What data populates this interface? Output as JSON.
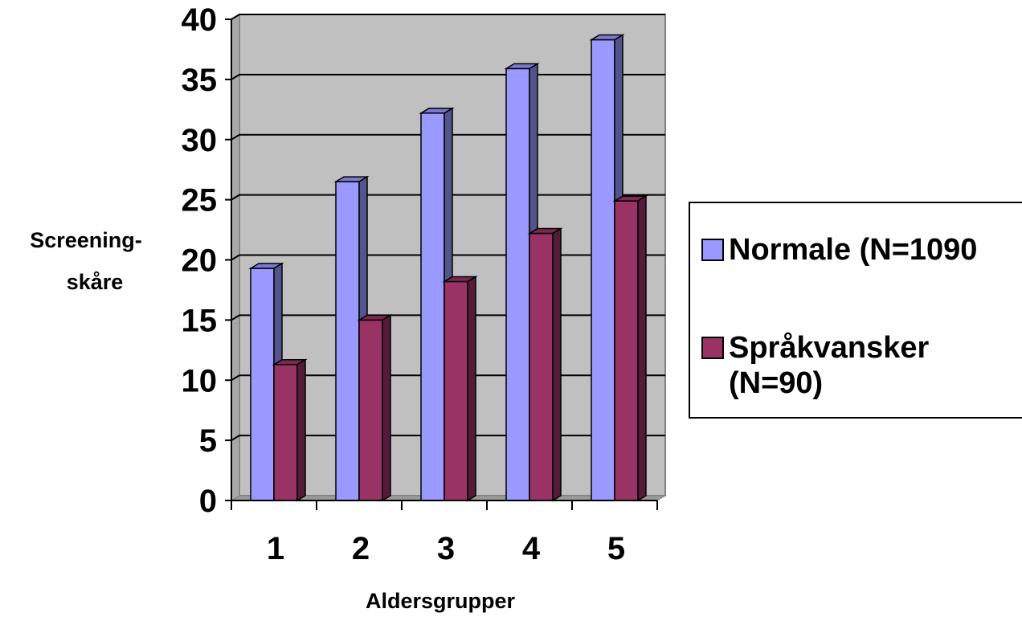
{
  "chart_data": {
    "type": "bar",
    "categories": [
      "1",
      "2",
      "3",
      "4",
      "5"
    ],
    "series": [
      {
        "name": "Normale (N=1090",
        "values": [
          19.3,
          26.5,
          32.2,
          35.9,
          38.3
        ],
        "color": "#9999ff"
      },
      {
        "name": "Språkvansker\n(N=90)",
        "values": [
          11.3,
          15.0,
          18.2,
          22.2,
          24.9
        ],
        "color": "#993366"
      }
    ],
    "xlabel": "Aldersgrupper",
    "ylabel": [
      "Screening-",
      "skåre"
    ],
    "yticks": [
      "0",
      "5",
      "10",
      "15",
      "20",
      "25",
      "30",
      "35",
      "40"
    ],
    "ylim": [
      0,
      40
    ],
    "grid": true,
    "legend_position": "right",
    "plot_background": "#c0c0c0"
  }
}
